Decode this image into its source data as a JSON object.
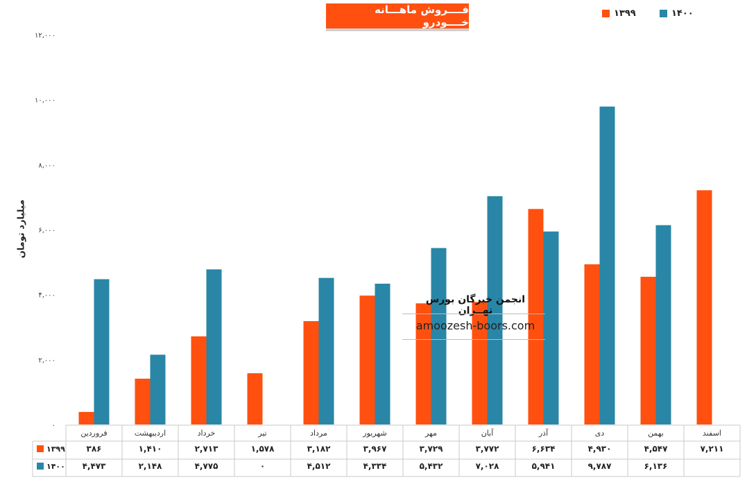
{
  "chart_data": {
    "type": "bar",
    "title": "فــــروش ماهـــانه خــــودرو",
    "ylabel": "میلیارد تومان",
    "ylim": [
      0,
      12000
    ],
    "yticks": [
      "۰",
      "۲,۰۰۰",
      "۴,۰۰۰",
      "۶,۰۰۰",
      "۸,۰۰۰",
      "۱۰,۰۰۰",
      "۱۲,۰۰۰"
    ],
    "ytick_values": [
      0,
      2000,
      4000,
      6000,
      8000,
      10000,
      12000
    ],
    "categories": [
      "فروردین",
      "اردیبهشت",
      "خرداد",
      "تیر",
      "مرداد",
      "شهریور",
      "مهر",
      "آبان",
      "آذر",
      "دی",
      "بهمن",
      "اسفند"
    ],
    "series": [
      {
        "name": "۱۳۹۹",
        "color": "#ff5010",
        "values": [
          386,
          1410,
          2713,
          1578,
          3182,
          3967,
          3729,
          3772,
          6634,
          4930,
          4547,
          7211
        ],
        "labels": [
          "۳۸۶",
          "۱,۴۱۰",
          "۲,۷۱۳",
          "۱,۵۷۸",
          "۳,۱۸۲",
          "۳,۹۶۷",
          "۳,۷۲۹",
          "۳,۷۷۲",
          "۶,۶۳۴",
          "۴,۹۳۰",
          "۴,۵۴۷",
          "۷,۲۱۱"
        ]
      },
      {
        "name": "۱۴۰۰",
        "color": "#2986a6",
        "values": [
          4473,
          2148,
          4775,
          0,
          4512,
          4334,
          5432,
          7028,
          5941,
          9787,
          6136,
          null
        ],
        "labels": [
          "۴,۴۷۳",
          "۲,۱۴۸",
          "۴,۷۷۵",
          "۰",
          "۴,۵۱۲",
          "۴,۳۳۴",
          "۵,۴۳۲",
          "۷,۰۲۸",
          "۵,۹۴۱",
          "۹,۷۸۷",
          "۶,۱۳۶",
          ""
        ]
      }
    ],
    "legend_position": "top-right",
    "grid": false,
    "data_table": true
  },
  "watermark": {
    "name": "انجمن خبرگان بورس تهــران",
    "site": "amoozesh-boors.com"
  }
}
